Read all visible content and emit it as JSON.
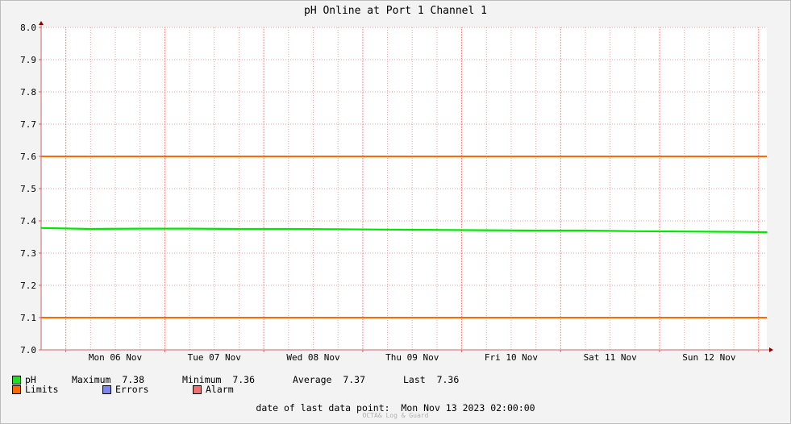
{
  "chart_data": {
    "type": "line",
    "title": "pH Online at Port 1 Channel 1",
    "ylim": [
      7.0,
      8.0
    ],
    "yticks": [
      "7.0",
      "7.1",
      "7.2",
      "7.3",
      "7.4",
      "7.5",
      "7.6",
      "7.7",
      "7.8",
      "7.9",
      "8.0"
    ],
    "xlim": [
      "2023-11-05 18:00",
      "2023-11-13 02:00"
    ],
    "xtick_labels": [
      "Mon 06 Nov",
      "Tue 07 Nov",
      "Wed 08 Nov",
      "Thu 09 Nov",
      "Fri 10 Nov",
      "Sat 11 Nov",
      "Sun 12 Nov"
    ],
    "grid": true,
    "series": [
      {
        "name": "pH",
        "color": "#00e800",
        "x": [
          "2023-11-05 18:00",
          "2023-11-06 06:00",
          "2023-11-06 18:00",
          "2023-11-07 06:00",
          "2023-11-07 18:00",
          "2023-11-08 06:00",
          "2023-11-08 18:00",
          "2023-11-09 06:00",
          "2023-11-09 18:00",
          "2023-11-10 06:00",
          "2023-11-10 18:00",
          "2023-11-11 06:00",
          "2023-11-11 18:00",
          "2023-11-12 06:00",
          "2023-11-12 18:00",
          "2023-11-13 02:00"
        ],
        "values": [
          7.378,
          7.375,
          7.376,
          7.376,
          7.375,
          7.375,
          7.374,
          7.373,
          7.372,
          7.371,
          7.37,
          7.37,
          7.368,
          7.367,
          7.366,
          7.365
        ]
      }
    ],
    "limits": [
      {
        "name": "Limits",
        "value": 7.6,
        "color": "#ff6a00"
      },
      {
        "name": "Limits",
        "value": 7.1,
        "color": "#ff6a00"
      }
    ]
  },
  "legend": {
    "ph": {
      "label": "pH",
      "color": "#22dd22",
      "max_label": "Maximum",
      "max_value": "7.38",
      "min_label": "Minimum",
      "min_value": "7.36",
      "avg_label": "Average",
      "avg_value": "7.37",
      "last_label": "Last",
      "last_value": "7.36"
    },
    "limits": {
      "label": "Limits",
      "color": "#ff6a00"
    },
    "errors": {
      "label": "Errors",
      "color": "#7b86f0"
    },
    "alarm": {
      "label": "Alarm",
      "color": "#f07070"
    }
  },
  "footer": {
    "label": "date of last data point:",
    "value": "Mon Nov 13 2023 02:00:00"
  },
  "watermark": "OCTA& Log & Guard"
}
